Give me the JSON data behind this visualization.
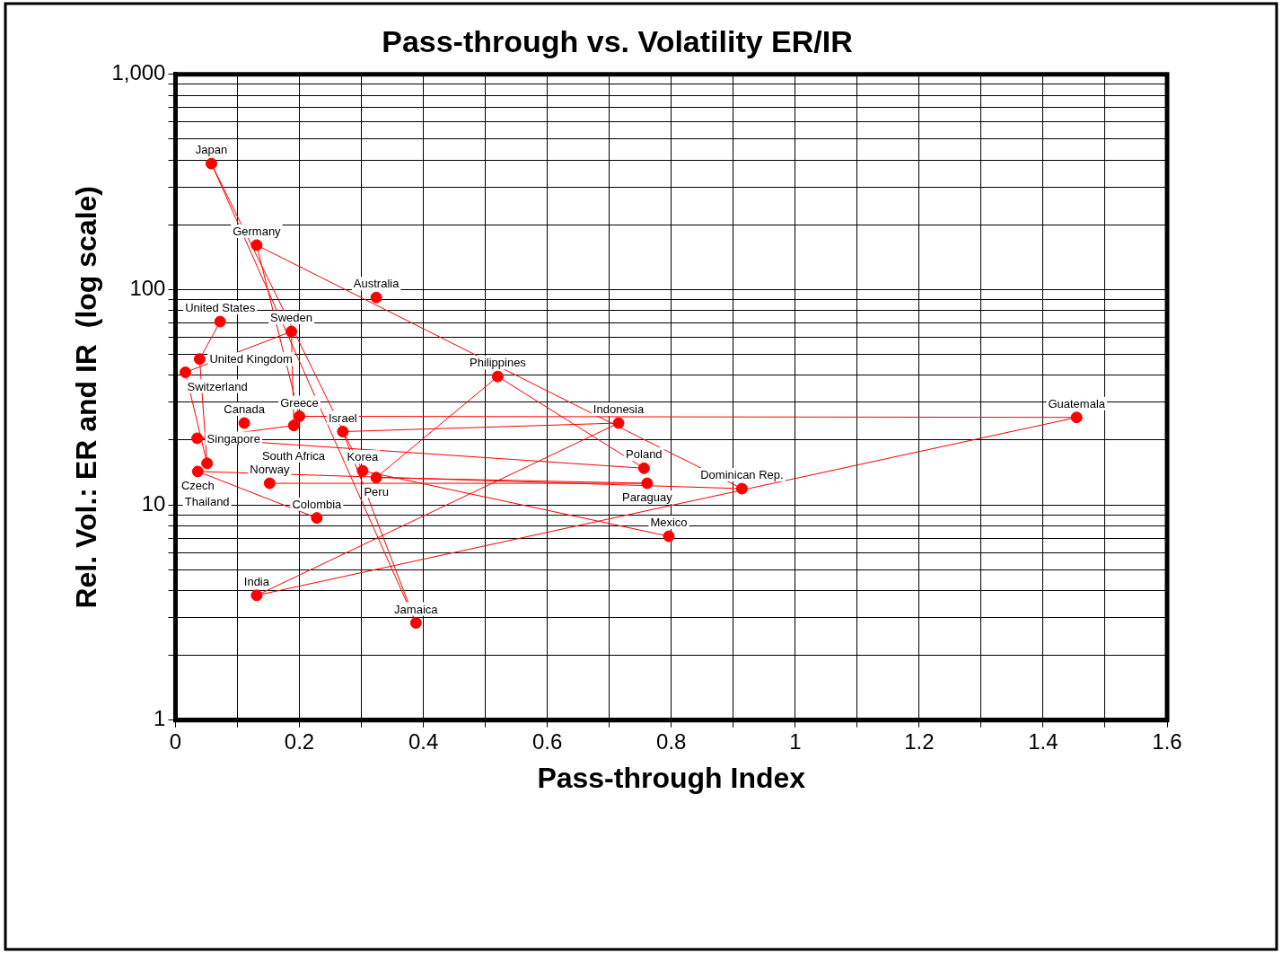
{
  "chart_data": {
    "type": "line",
    "title": "Pass-through vs. Volatility ER/IR",
    "xlabel": "Pass-through Index",
    "ylabel": "Rel. Vol.: ER and IR  (log scale)",
    "series": [
      {
        "color": "#ff0000",
        "x": [
          0.324,
          null,
          0.111,
          null,
          0.228,
          0.036,
          0.914,
          0.131,
          0.2,
          1.454,
          0.131,
          0.715,
          0.27,
          0.388,
          0.058,
          0.302,
          0.796,
          null,
          0.152,
          0.761,
          0.324,
          0.52,
          0.756,
          0.035,
          0.191,
          0.187,
          0.016,
          0.051,
          0.039,
          0.072
        ],
        "values": [
          92,
          null,
          24,
          null,
          8.7,
          14.3,
          11.9,
          161,
          25.8,
          25.5,
          3.8,
          24,
          21.9,
          2.83,
          385,
          14.4,
          7.15,
          null,
          12.6,
          12.6,
          13.4,
          39.5,
          14.8,
          20.4,
          23.4,
          63.9,
          41.3,
          15.6,
          47.6,
          71
        ]
      }
    ],
    "annotations": [
      {
        "text": "Australia",
        "x": 0.324,
        "y": 92
      },
      {
        "text": "Canada",
        "x": 0.111,
        "y": 24
      },
      {
        "text": "Colombia",
        "x": 0.228,
        "y": 8.7
      },
      {
        "text": "Czech",
        "x": 0.036,
        "y": 14.3
      },
      {
        "text": "Dominican Rep.",
        "x": 0.914,
        "y": 11.9
      },
      {
        "text": "Germany",
        "x": 0.131,
        "y": 161
      },
      {
        "text": "Greece",
        "x": 0.2,
        "y": 25.8
      },
      {
        "text": "Guatemala",
        "x": 1.454,
        "y": 25.5
      },
      {
        "text": "India",
        "x": 0.131,
        "y": 3.8
      },
      {
        "text": "Indonesia",
        "x": 0.715,
        "y": 24
      },
      {
        "text": "Israel",
        "x": 0.27,
        "y": 21.9
      },
      {
        "text": "Jamaica",
        "x": 0.388,
        "y": 2.83
      },
      {
        "text": "Japan",
        "x": 0.058,
        "y": 385
      },
      {
        "text": "Korea",
        "x": 0.302,
        "y": 14.4
      },
      {
        "text": "Mexico",
        "x": 0.796,
        "y": 7.15
      },
      {
        "text": "Norway",
        "x": 0.152,
        "y": 12.6
      },
      {
        "text": "Paraguay",
        "x": 0.761,
        "y": 12.6
      },
      {
        "text": "Peru",
        "x": 0.324,
        "y": 13.4
      },
      {
        "text": "Philippines",
        "x": 0.52,
        "y": 39.5
      },
      {
        "text": "Poland",
        "x": 0.756,
        "y": 14.8
      },
      {
        "text": "Singapore",
        "x": 0.035,
        "y": 20.4
      },
      {
        "text": "South Africa",
        "x": 0.191,
        "y": 23.4
      },
      {
        "text": "Sweden",
        "x": 0.187,
        "y": 63.9
      },
      {
        "text": "Switzerland",
        "x": 0.016,
        "y": 41.3
      },
      {
        "text": "Thailand",
        "x": 0.051,
        "y": 15.6
      },
      {
        "text": "United Kingdom",
        "x": 0.039,
        "y": 47.6
      },
      {
        "text": "United States",
        "x": 0.072,
        "y": 71
      }
    ],
    "xlim": [
      0,
      1.6
    ],
    "xticks": [
      0,
      {
        "value": 0.1,
        "label": null
      },
      0.2,
      {
        "value": 0.3,
        "label": null
      },
      0.4,
      {
        "value": 0.5,
        "label": null
      },
      0.6,
      {
        "value": 0.7,
        "label": null
      },
      0.8,
      {
        "value": 0.9,
        "label": null
      },
      1,
      {
        "value": 1.1,
        "label": null
      },
      1.2,
      {
        "value": 1.3,
        "label": null
      },
      1.4,
      {
        "value": 1.5,
        "label": null
      },
      1.6
    ],
    "ylim": [
      1,
      1000
    ],
    "yticks": [
      1,
      {
        "value": 2,
        "label": null
      },
      {
        "value": 3,
        "label": null
      },
      {
        "value": 4,
        "label": null
      },
      {
        "value": 5,
        "label": null
      },
      {
        "value": 6,
        "label": null
      },
      {
        "value": 7,
        "label": null
      },
      {
        "value": 8,
        "label": null
      },
      {
        "value": 9,
        "label": null
      },
      10,
      {
        "value": 20,
        "label": null
      },
      {
        "value": 30,
        "label": null
      },
      {
        "value": 40,
        "label": null
      },
      {
        "value": 50,
        "label": null
      },
      {
        "value": 60,
        "label": null
      },
      {
        "value": 70,
        "label": null
      },
      {
        "value": 80,
        "label": null
      },
      {
        "value": 90,
        "label": null
      },
      100,
      {
        "value": 200,
        "label": null
      },
      {
        "value": 300,
        "label": null
      },
      {
        "value": 400,
        "label": null
      },
      {
        "value": 500,
        "label": null
      },
      {
        "value": 600,
        "label": null
      },
      {
        "value": 700,
        "label": null
      },
      {
        "value": 800,
        "label": null
      },
      {
        "value": 900,
        "label": null
      },
      {
        "value": 1000,
        "label": "1,000"
      }
    ],
    "log": "y",
    "grid": true,
    "legend": false,
    "marker": "circle",
    "line_style": "solid"
  }
}
